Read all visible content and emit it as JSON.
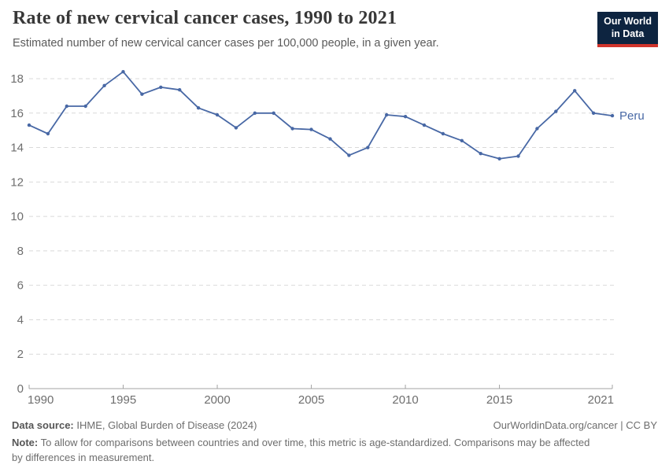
{
  "header": {
    "title": "Rate of new cervical cancer cases, 1990 to 2021",
    "subtitle": "Estimated number of new cervical cancer cases per 100,000 people, in a given year.",
    "logo_line1": "Our World",
    "logo_line2": "in Data"
  },
  "chart_data": {
    "type": "line",
    "title": "Rate of new cervical cancer cases, 1990 to 2021",
    "xlabel": "",
    "ylabel": "",
    "x": [
      1990,
      1991,
      1992,
      1993,
      1994,
      1995,
      1996,
      1997,
      1998,
      1999,
      2000,
      2001,
      2002,
      2003,
      2004,
      2005,
      2006,
      2007,
      2008,
      2009,
      2010,
      2011,
      2012,
      2013,
      2014,
      2015,
      2016,
      2017,
      2018,
      2019,
      2020,
      2021
    ],
    "series": [
      {
        "name": "Peru",
        "color": "#4868A5",
        "values": [
          15.3,
          14.8,
          16.4,
          16.4,
          17.6,
          18.4,
          17.1,
          17.5,
          17.35,
          16.3,
          15.9,
          15.15,
          16.0,
          16.0,
          15.1,
          15.05,
          14.5,
          13.55,
          14.0,
          15.9,
          15.8,
          15.3,
          14.8,
          14.4,
          13.65,
          13.35,
          13.5,
          15.1,
          16.1,
          17.3,
          16.0,
          15.85
        ]
      }
    ],
    "ylim": [
      0,
      18
    ],
    "yticks": [
      0,
      2,
      4,
      6,
      8,
      10,
      12,
      14,
      16,
      18
    ],
    "xticks": [
      1990,
      1995,
      2000,
      2005,
      2010,
      2015,
      2021
    ],
    "grid": true,
    "legend": "end-of-line-label"
  },
  "colors": {
    "grid": "#d9d9d9",
    "axis": "#a3a3a3",
    "tick_label": "#6e6e6e",
    "line": "#4868A5"
  },
  "footer": {
    "datasource_label": "Data source:",
    "datasource_value": " IHME, Global Burden of Disease (2024)",
    "link": "OurWorldinData.org/cancer | CC BY",
    "note_label": "Note:",
    "note_value": " To allow for comparisons between countries and over time, this metric is age-standardized. Comparisons may be affected by differences in measurement."
  }
}
